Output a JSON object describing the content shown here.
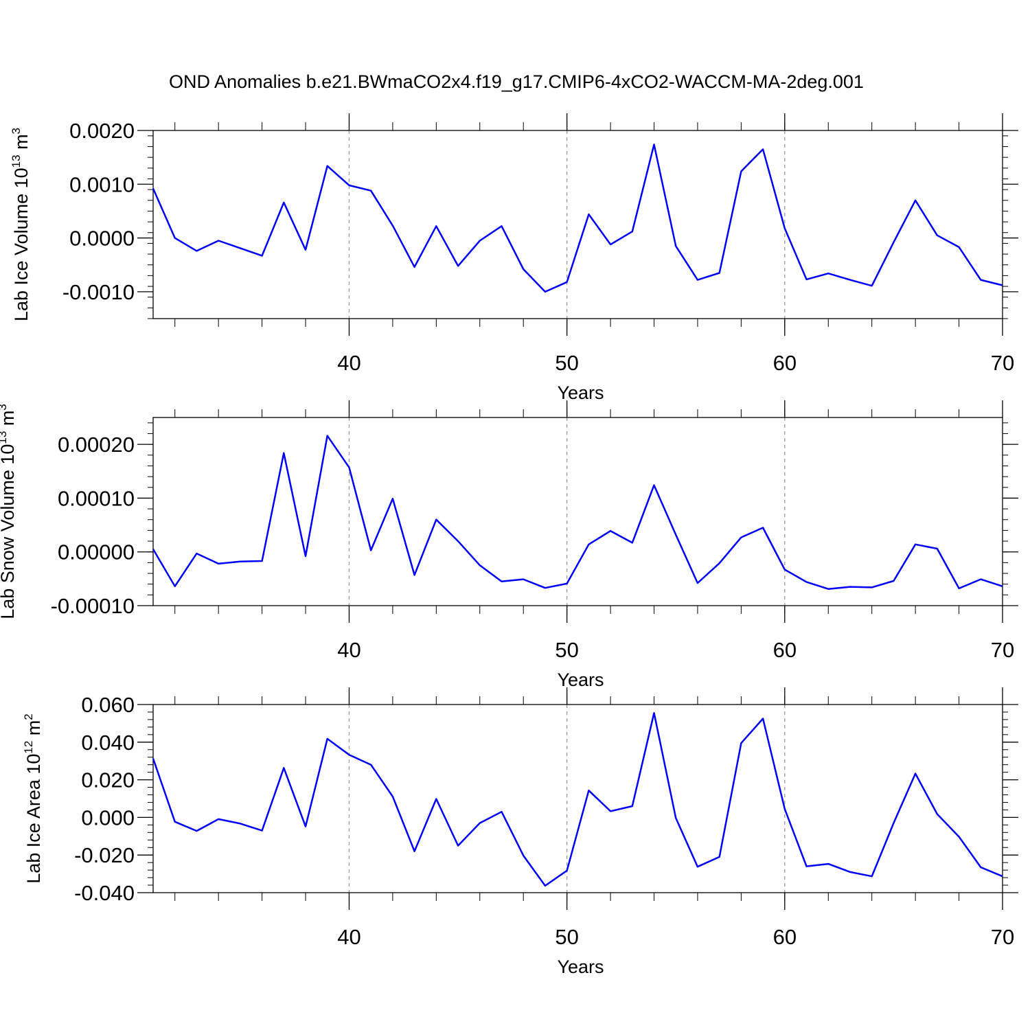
{
  "figure": {
    "title": "OND Anomalies b.e21.BWmaCO2x4.f19_g17.CMIP6-4xCO2-WACCM-MA-2deg.001"
  },
  "chart_data": [
    {
      "type": "line",
      "ylabel": "Lab Ice Volume 10",
      "ylabel_exp": "13",
      "ylabel_unit": " m",
      "ylabel_unit_exp": "3",
      "xlabel": "Years",
      "xlim": [
        31,
        70
      ],
      "ylim": [
        -0.0015,
        0.002
      ],
      "xticks": [
        40,
        50,
        60,
        70
      ],
      "xtick_labels": [
        "40",
        "50",
        "60",
        "70"
      ],
      "yticks": [
        -0.001,
        0,
        0.001,
        0.002
      ],
      "ytick_labels": [
        "-0.0010",
        "0.0000",
        "0.0010",
        "0.0020"
      ],
      "ytick_minor_step": 0.0002,
      "grid_x": [
        40,
        50,
        60
      ],
      "color": "#0000ff",
      "x": [
        31,
        32,
        33,
        34,
        35,
        36,
        37,
        38,
        39,
        40,
        41,
        42,
        43,
        44,
        45,
        46,
        47,
        48,
        49,
        50,
        51,
        52,
        53,
        54,
        55,
        56,
        57,
        58,
        59,
        60,
        61,
        62,
        63,
        64,
        65,
        66,
        67,
        68,
        69,
        70
      ],
      "y": [
        0.00092,
        0.0,
        -0.00024,
        -5e-05,
        -0.00019,
        -0.00033,
        0.00066,
        -0.00022,
        0.00134,
        0.00098,
        0.00088,
        0.00023,
        -0.00054,
        0.00022,
        -0.00052,
        -5e-05,
        0.00022,
        -0.00058,
        -0.001,
        -0.00082,
        0.00044,
        -0.00012,
        0.00012,
        0.00174,
        -0.00015,
        -0.00078,
        -0.00065,
        0.00124,
        0.00165,
        0.00018,
        -0.00077,
        -0.00066,
        -0.00078,
        -0.00089,
        -8e-05,
        0.0007,
        5e-05,
        -0.00017,
        -0.00078,
        -0.00088
      ]
    },
    {
      "type": "line",
      "ylabel": "Lab Snow Volume 10",
      "ylabel_exp": "13",
      "ylabel_unit": " m",
      "ylabel_unit_exp": "3",
      "xlabel": "Years",
      "xlim": [
        31,
        70
      ],
      "ylim": [
        -0.0001,
        0.00025
      ],
      "xticks": [
        40,
        50,
        60,
        70
      ],
      "xtick_labels": [
        "40",
        "50",
        "60",
        "70"
      ],
      "yticks": [
        -0.0001,
        0,
        0.0001,
        0.0002
      ],
      "ytick_labels": [
        "-0.00010",
        "0.00000",
        "0.00010",
        "0.00020"
      ],
      "ytick_minor_step": 2e-05,
      "grid_x": [
        40,
        50,
        60
      ],
      "color": "#0000ff",
      "x": [
        31,
        32,
        33,
        34,
        35,
        36,
        37,
        38,
        39,
        40,
        41,
        42,
        43,
        44,
        45,
        46,
        47,
        48,
        49,
        50,
        51,
        52,
        53,
        54,
        55,
        56,
        57,
        58,
        59,
        60,
        61,
        62,
        63,
        64,
        65,
        66,
        67,
        68,
        69,
        70
      ],
      "y": [
        5e-06,
        -6.4e-05,
        -3e-06,
        -2.2e-05,
        -1.8e-05,
        -1.7e-05,
        0.000184,
        -8e-06,
        0.000216,
        0.000157,
        3e-06,
        9.9e-05,
        -4.3e-05,
        6e-05,
        2e-05,
        -2.5e-05,
        -5.5e-05,
        -5.1e-05,
        -6.7e-05,
        -5.9e-05,
        1.4e-05,
        3.9e-05,
        1.7e-05,
        0.000124,
        3.2e-05,
        -5.8e-05,
        -2.1e-05,
        2.7e-05,
        4.5e-05,
        -3.3e-05,
        -5.6e-05,
        -6.9e-05,
        -6.5e-05,
        -6.6e-05,
        -5.4e-05,
        1.4e-05,
        6e-06,
        -6.8e-05,
        -5.1e-05,
        -6.4e-05
      ]
    },
    {
      "type": "line",
      "ylabel": "Lab Ice Area 10",
      "ylabel_exp": "12",
      "ylabel_unit": " m",
      "ylabel_unit_exp": "2",
      "xlabel": "Years",
      "xlim": [
        31,
        70
      ],
      "ylim": [
        -0.04,
        0.06
      ],
      "xticks": [
        40,
        50,
        60,
        70
      ],
      "xtick_labels": [
        "40",
        "50",
        "60",
        "70"
      ],
      "yticks": [
        -0.04,
        -0.02,
        0,
        0.02,
        0.04,
        0.06
      ],
      "ytick_labels": [
        "-0.040",
        "-0.020",
        "0.000",
        "0.020",
        "0.040",
        "0.060"
      ],
      "ytick_minor_step": 0.004,
      "grid_x": [
        40,
        50,
        60
      ],
      "color": "#0000ff",
      "x": [
        31,
        32,
        33,
        34,
        35,
        36,
        37,
        38,
        39,
        40,
        41,
        42,
        43,
        44,
        45,
        46,
        47,
        48,
        49,
        50,
        51,
        52,
        53,
        54,
        55,
        56,
        57,
        58,
        59,
        60,
        61,
        62,
        63,
        64,
        65,
        66,
        67,
        68,
        69,
        70
      ],
      "y": [
        0.0313,
        -0.0023,
        -0.0072,
        -0.0009,
        -0.0033,
        -0.007,
        0.0263,
        -0.0048,
        0.0418,
        0.0333,
        0.028,
        0.0111,
        -0.018,
        0.0098,
        -0.015,
        -0.003,
        0.003,
        -0.0203,
        -0.0363,
        -0.0283,
        0.0143,
        0.0033,
        0.006,
        0.0555,
        -0.0003,
        -0.0262,
        -0.021,
        0.0395,
        0.0525,
        0.0045,
        -0.026,
        -0.0247,
        -0.029,
        -0.0313,
        -0.003,
        0.0233,
        0.0018,
        -0.0103,
        -0.0265,
        -0.0313
      ]
    }
  ]
}
